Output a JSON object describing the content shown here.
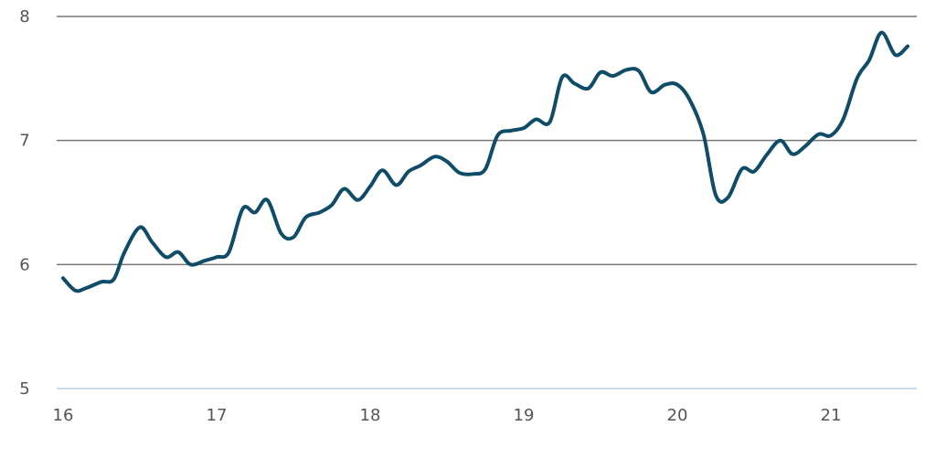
{
  "chart_data": {
    "type": "line",
    "title": "",
    "xlabel": "",
    "ylabel": "",
    "xlim": [
      16,
      21.5
    ],
    "ylim": [
      5,
      8
    ],
    "x_ticks": [
      "16",
      "17",
      "18",
      "19",
      "20",
      "21"
    ],
    "y_ticks": [
      "5",
      "6",
      "7",
      "8"
    ],
    "grid": true,
    "legend": "none",
    "series": [
      {
        "color": "#0f4c68",
        "points": [
          [
            16.0,
            5.89
          ],
          [
            16.08,
            5.79
          ],
          [
            16.15,
            5.81
          ],
          [
            16.25,
            5.86
          ],
          [
            16.33,
            5.88
          ],
          [
            16.4,
            6.1
          ],
          [
            16.5,
            6.3
          ],
          [
            16.58,
            6.18
          ],
          [
            16.67,
            6.06
          ],
          [
            16.75,
            6.1
          ],
          [
            16.83,
            6.0
          ],
          [
            16.92,
            6.03
          ],
          [
            17.0,
            6.06
          ],
          [
            17.08,
            6.1
          ],
          [
            17.17,
            6.45
          ],
          [
            17.25,
            6.42
          ],
          [
            17.33,
            6.52
          ],
          [
            17.42,
            6.25
          ],
          [
            17.5,
            6.22
          ],
          [
            17.58,
            6.38
          ],
          [
            17.67,
            6.42
          ],
          [
            17.75,
            6.48
          ],
          [
            17.83,
            6.61
          ],
          [
            17.92,
            6.52
          ],
          [
            18.0,
            6.63
          ],
          [
            18.08,
            6.76
          ],
          [
            18.17,
            6.64
          ],
          [
            18.25,
            6.75
          ],
          [
            18.33,
            6.8
          ],
          [
            18.42,
            6.87
          ],
          [
            18.5,
            6.83
          ],
          [
            18.58,
            6.74
          ],
          [
            18.67,
            6.73
          ],
          [
            18.75,
            6.77
          ],
          [
            18.83,
            7.04
          ],
          [
            18.92,
            7.08
          ],
          [
            19.0,
            7.1
          ],
          [
            19.08,
            7.17
          ],
          [
            19.17,
            7.15
          ],
          [
            19.25,
            7.51
          ],
          [
            19.33,
            7.46
          ],
          [
            19.42,
            7.42
          ],
          [
            19.5,
            7.55
          ],
          [
            19.58,
            7.52
          ],
          [
            19.67,
            7.57
          ],
          [
            19.75,
            7.56
          ],
          [
            19.83,
            7.39
          ],
          [
            19.92,
            7.45
          ],
          [
            20.0,
            7.45
          ],
          [
            20.08,
            7.33
          ],
          [
            20.17,
            7.05
          ],
          [
            20.25,
            6.56
          ],
          [
            20.33,
            6.54
          ],
          [
            20.42,
            6.77
          ],
          [
            20.5,
            6.75
          ],
          [
            20.58,
            6.88
          ],
          [
            20.67,
            7.0
          ],
          [
            20.75,
            6.89
          ],
          [
            20.83,
            6.95
          ],
          [
            20.92,
            7.05
          ],
          [
            21.0,
            7.04
          ],
          [
            21.08,
            7.17
          ],
          [
            21.17,
            7.5
          ],
          [
            21.25,
            7.65
          ],
          [
            21.33,
            7.87
          ],
          [
            21.42,
            7.69
          ],
          [
            21.5,
            7.76
          ]
        ]
      }
    ]
  }
}
